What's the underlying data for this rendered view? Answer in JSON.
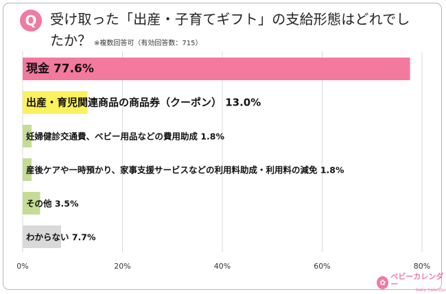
{
  "header": {
    "badge": "Q",
    "title_line1": "受け取った「出産・子育てギフト」の支給形態はどれでし",
    "title_line2": "たか？",
    "note": "※複数回答可（有効回答数：715）"
  },
  "logo": {
    "main": "ベビーカレンダー",
    "sub": "Baby Calendar"
  },
  "chart_data": {
    "type": "bar",
    "orientation": "horizontal",
    "categories": [
      "現金",
      "出産・育児関連商品の商品券（クーポン）",
      "妊婦健診交通費、ベビー用品などの費用助成",
      "産後ケアや一時預かり、家事支援サービスなどの利用料助成・利用料の減免",
      "その他",
      "わからない"
    ],
    "values": [
      77.6,
      13.0,
      1.8,
      1.8,
      3.5,
      7.7
    ],
    "labels": [
      "現金 77.6%",
      "出産・育児関連商品の商品券（クーポン） 13.0%",
      "妊婦健診交通費、ベビー用品などの費用助成 1.8%",
      "産後ケアや一時預かり、家事支援サービスなどの利用料助成・利用料の減免 1.8%",
      "その他 3.5%",
      "わからない 7.7%"
    ],
    "colors": [
      "#f4799f",
      "#fbf15c",
      "#c5dc95",
      "#c5dc95",
      "#c5dc95",
      "#d9d9d9"
    ],
    "xlim": [
      0,
      80
    ],
    "xticks": [
      "0%",
      "20%",
      "40%",
      "60%",
      "80%"
    ],
    "grid": true,
    "gridline_color": "#d8d8d8"
  }
}
